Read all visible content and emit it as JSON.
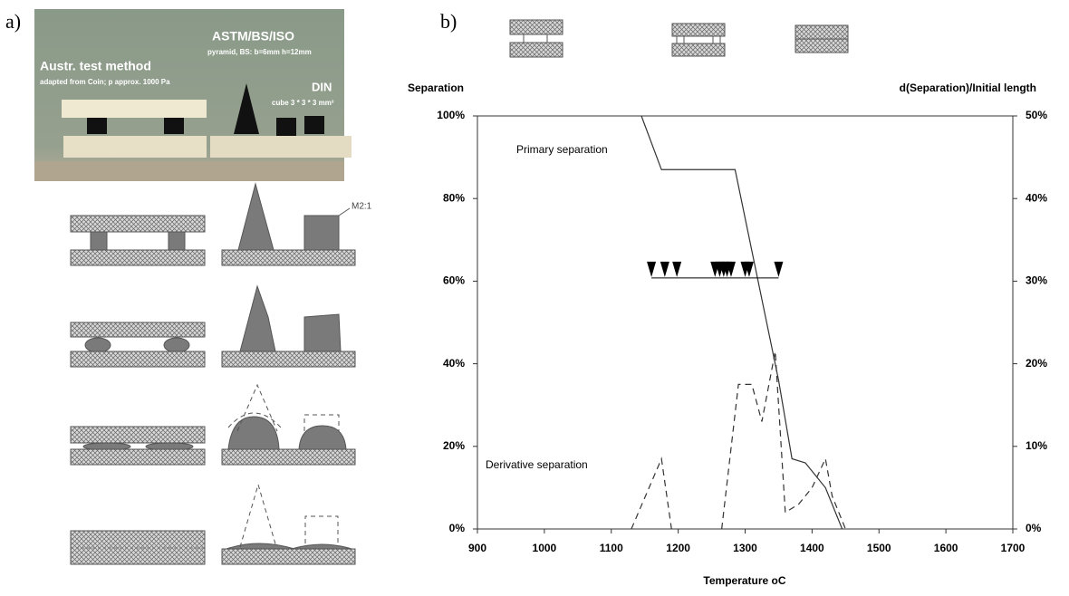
{
  "panel_a": {
    "label": "a)",
    "photo": {
      "austr_title": "Austr. test method",
      "austr_note": "adapted from Coin; p   approx. 1000 Pa",
      "astm_title": "ASTM/BS/ISO",
      "astm_note": "pyramid, BS: b=6mm  h=12mm",
      "din_title": "DIN",
      "din_note": "cube 3 * 3 * 3 mm³"
    },
    "scale_note": "M2:1"
  },
  "chart_data": {
    "type": "line",
    "panel_label": "b)",
    "y_label": "Separation",
    "y2_label": "d(Separation)/Initial length",
    "x_label": "Temperature oC",
    "annotations": [
      "Primary separation",
      "Derivative separation"
    ],
    "xlim": [
      900,
      1700
    ],
    "xticks": [
      900,
      1000,
      1100,
      1200,
      1300,
      1400,
      1500,
      1600,
      1700
    ],
    "ylim": [
      0,
      100
    ],
    "yticks": [
      {
        "value": 0,
        "label": "0%"
      },
      {
        "value": 20,
        "label": "20%"
      },
      {
        "value": 40,
        "label": "40%"
      },
      {
        "value": 60,
        "label": "60%"
      },
      {
        "value": 80,
        "label": "80%"
      },
      {
        "value": 100,
        "label": "100%"
      }
    ],
    "y2lim": [
      0,
      50
    ],
    "y2ticks": [
      {
        "value": 0,
        "label": "0%"
      },
      {
        "value": 10,
        "label": "10%"
      },
      {
        "value": 20,
        "label": "20%"
      },
      {
        "value": 30,
        "label": "30%"
      },
      {
        "value": 40,
        "label": "40%"
      },
      {
        "value": 50,
        "label": "50%"
      }
    ],
    "series": [
      {
        "color": "#333333",
        "dash": false,
        "x": [
          1145,
          1175,
          1285,
          1350,
          1370,
          1390,
          1420,
          1445
        ],
        "values": [
          100,
          87,
          87,
          36,
          17,
          16,
          10,
          0
        ]
      },
      {
        "color": "#333333",
        "dash": true,
        "axis": "y2",
        "x": [
          1130,
          1175,
          1190,
          1228,
          1265,
          1290,
          1310,
          1325,
          1345,
          1360,
          1380,
          1400,
          1420,
          1430,
          1450
        ],
        "values": [
          0,
          8.5,
          0,
          null,
          0,
          17.5,
          17.5,
          13,
          21.5,
          2,
          3,
          5,
          8.5,
          4,
          0
        ]
      }
    ],
    "markers": {
      "x": [
        1160,
        1180,
        1198,
        1255,
        1262,
        1268,
        1273,
        1279,
        1300,
        1306,
        1350
      ],
      "values": [
        61,
        61,
        61,
        61,
        61,
        61,
        61,
        61,
        61,
        61,
        61
      ],
      "color": "#000000"
    }
  }
}
